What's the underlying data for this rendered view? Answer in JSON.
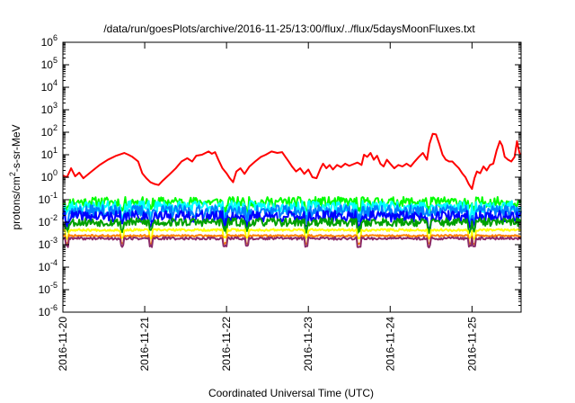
{
  "chart_data": {
    "type": "line",
    "title": "/data/run/goesPlots/archive/2016-11-25/13:00/flux/../flux/5daysMoonFluxes.txt",
    "xlabel": "Coordinated Universal Time (UTC)",
    "ylabel_parts": [
      "protons/cm",
      "2",
      "-s-sr-MeV"
    ],
    "yscale": "log",
    "ylim_exp": [
      -6,
      6
    ],
    "ytick_exponents": [
      "-6",
      "-5",
      "-4",
      "-3",
      "-2",
      "-1",
      "0",
      "1",
      "2",
      "3",
      "4",
      "5",
      "6"
    ],
    "ytick_base": "10",
    "xlim_days": [
      0,
      5.6
    ],
    "xticks": [
      "2016-11-20",
      "2016-11-21",
      "2016-11-22",
      "2016-11-23",
      "2016-11-24",
      "2016-11-25"
    ],
    "grid": false,
    "legend": "none",
    "series": [
      {
        "color": "#ff0000",
        "points": [
          [
            0.0,
            1.2
          ],
          [
            0.05,
            1.0
          ],
          [
            0.1,
            2.5
          ],
          [
            0.15,
            1.1
          ],
          [
            0.2,
            1.6
          ],
          [
            0.25,
            0.9
          ],
          [
            0.35,
            1.8
          ],
          [
            0.45,
            3.5
          ],
          [
            0.55,
            6
          ],
          [
            0.65,
            9
          ],
          [
            0.75,
            12
          ],
          [
            0.8,
            10
          ],
          [
            0.85,
            8
          ],
          [
            0.92,
            5
          ],
          [
            0.97,
            1.5
          ],
          [
            1.02,
            0.9
          ],
          [
            1.07,
            0.6
          ],
          [
            1.12,
            0.5
          ],
          [
            1.17,
            0.45
          ],
          [
            1.22,
            0.7
          ],
          [
            1.3,
            1.3
          ],
          [
            1.38,
            2.5
          ],
          [
            1.45,
            5
          ],
          [
            1.52,
            7
          ],
          [
            1.58,
            5
          ],
          [
            1.63,
            9
          ],
          [
            1.7,
            10
          ],
          [
            1.78,
            14
          ],
          [
            1.82,
            11
          ],
          [
            1.86,
            13
          ],
          [
            1.9,
            6
          ],
          [
            1.95,
            2.5
          ],
          [
            2.0,
            1.5
          ],
          [
            2.04,
            0.9
          ],
          [
            2.08,
            0.6
          ],
          [
            2.12,
            1.8
          ],
          [
            2.17,
            2.5
          ],
          [
            2.22,
            1.4
          ],
          [
            2.28,
            3
          ],
          [
            2.35,
            5
          ],
          [
            2.42,
            8
          ],
          [
            2.48,
            10
          ],
          [
            2.55,
            14
          ],
          [
            2.62,
            12
          ],
          [
            2.68,
            13
          ],
          [
            2.72,
            8
          ],
          [
            2.76,
            5
          ],
          [
            2.8,
            3
          ],
          [
            2.85,
            1.8
          ],
          [
            2.9,
            2.5
          ],
          [
            2.95,
            1.4
          ],
          [
            3.0,
            2.2
          ],
          [
            3.05,
            1.0
          ],
          [
            3.1,
            0.9
          ],
          [
            3.15,
            2.5
          ],
          [
            3.18,
            4
          ],
          [
            3.22,
            2.5
          ],
          [
            3.26,
            3.5
          ],
          [
            3.3,
            2.2
          ],
          [
            3.35,
            3.5
          ],
          [
            3.4,
            2.8
          ],
          [
            3.45,
            4
          ],
          [
            3.5,
            3.2
          ],
          [
            3.55,
            3.8
          ],
          [
            3.6,
            4.5
          ],
          [
            3.65,
            3.5
          ],
          [
            3.68,
            10
          ],
          [
            3.72,
            8
          ],
          [
            3.76,
            12
          ],
          [
            3.8,
            6
          ],
          [
            3.84,
            9
          ],
          [
            3.88,
            4
          ],
          [
            3.92,
            3
          ],
          [
            3.96,
            6
          ],
          [
            4.0,
            4
          ],
          [
            4.05,
            2.5
          ],
          [
            4.1,
            3.5
          ],
          [
            4.15,
            3
          ],
          [
            4.2,
            4
          ],
          [
            4.25,
            3
          ],
          [
            4.3,
            5
          ],
          [
            4.35,
            8
          ],
          [
            4.4,
            12
          ],
          [
            4.45,
            6
          ],
          [
            4.48,
            30
          ],
          [
            4.52,
            85
          ],
          [
            4.56,
            80
          ],
          [
            4.6,
            30
          ],
          [
            4.64,
            10
          ],
          [
            4.68,
            6
          ],
          [
            4.72,
            5
          ],
          [
            4.76,
            5
          ],
          [
            4.8,
            3.5
          ],
          [
            4.84,
            2.5
          ],
          [
            4.88,
            1.5
          ],
          [
            4.92,
            1.0
          ],
          [
            4.96,
            0.5
          ],
          [
            5.0,
            0.3
          ],
          [
            5.03,
            0.9
          ],
          [
            5.06,
            1.8
          ],
          [
            5.1,
            1.5
          ],
          [
            5.14,
            3
          ],
          [
            5.18,
            2
          ],
          [
            5.22,
            3.5
          ],
          [
            5.26,
            4
          ],
          [
            5.3,
            15
          ],
          [
            5.34,
            40
          ],
          [
            5.37,
            25
          ],
          [
            5.4,
            8
          ],
          [
            5.44,
            6
          ],
          [
            5.48,
            5
          ],
          [
            5.52,
            8
          ],
          [
            5.55,
            40
          ],
          [
            5.58,
            12
          ],
          [
            5.6,
            10
          ]
        ]
      },
      {
        "color": "#00ff00",
        "base": 0.08,
        "amp": 0.22,
        "seed": 11
      },
      {
        "color": "#00ffff",
        "base": 0.05,
        "amp": 0.25,
        "seed": 23
      },
      {
        "color": "#0080ff",
        "base": 0.03,
        "amp": 0.28,
        "seed": 37
      },
      {
        "color": "#0000ff",
        "base": 0.018,
        "amp": 0.25,
        "seed": 41
      },
      {
        "color": "#00a000",
        "base": 0.01,
        "amp": 0.18,
        "seed": 53
      },
      {
        "color": "#ffff00",
        "base": 0.0045,
        "amp": 0.05,
        "seed": 67
      },
      {
        "color": "#ff8000",
        "base": 0.0025,
        "amp": 0.04,
        "seed": 71
      },
      {
        "color": "#8b2d6b",
        "base": 0.0019,
        "amp": 0.06,
        "seed": 89
      }
    ]
  }
}
